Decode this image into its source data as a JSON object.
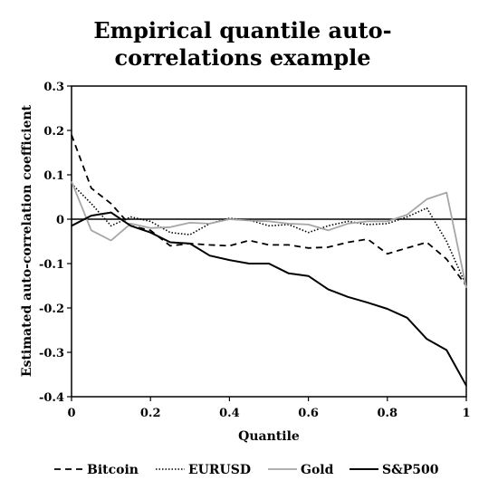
{
  "chart_data": {
    "type": "line",
    "title_lines": [
      "Empirical quantile auto-",
      "correlations example"
    ],
    "xlabel": "Quantile",
    "ylabel": "Estimated auto-correlation coefficient",
    "xlim": [
      0,
      1
    ],
    "ylim": [
      -0.4,
      0.3
    ],
    "x_ticks": [
      "0",
      "0.2",
      "0.4",
      "0.6",
      "0.8",
      "1"
    ],
    "y_ticks": [
      "0.3",
      "0.2",
      "0.1",
      "0",
      "-0.1",
      "-0.2",
      "-0.3",
      "-0.4"
    ],
    "grid": false,
    "legend_position": "bottom",
    "series": [
      {
        "name": "Bitcoin",
        "style": "dashed",
        "color": "#000000",
        "x": [
          0,
          0.05,
          0.1,
          0.15,
          0.2,
          0.25,
          0.3,
          0.35,
          0.4,
          0.45,
          0.5,
          0.55,
          0.6,
          0.65,
          0.7,
          0.75,
          0.8,
          0.85,
          0.9,
          0.95,
          1
        ],
        "y": [
          0.19,
          0.07,
          0.035,
          -0.015,
          -0.025,
          -0.06,
          -0.055,
          -0.058,
          -0.06,
          -0.048,
          -0.058,
          -0.058,
          -0.065,
          -0.063,
          -0.052,
          -0.045,
          -0.078,
          -0.065,
          -0.052,
          -0.09,
          -0.15
        ]
      },
      {
        "name": "EURUSD",
        "style": "dotted",
        "color": "#000000",
        "x": [
          0,
          0.05,
          0.1,
          0.15,
          0.2,
          0.25,
          0.3,
          0.35,
          0.4,
          0.45,
          0.5,
          0.55,
          0.6,
          0.65,
          0.7,
          0.75,
          0.8,
          0.85,
          0.9,
          0.95,
          1
        ],
        "y": [
          0.08,
          0.035,
          -0.015,
          0.005,
          -0.005,
          -0.03,
          -0.035,
          -0.01,
          0.002,
          -0.002,
          -0.015,
          -0.012,
          -0.03,
          -0.015,
          -0.005,
          -0.012,
          -0.01,
          0.005,
          0.025,
          -0.05,
          -0.15
        ]
      },
      {
        "name": "Gold",
        "style": "solid",
        "color": "#a6a6a6",
        "x": [
          0,
          0.05,
          0.1,
          0.15,
          0.2,
          0.25,
          0.3,
          0.35,
          0.4,
          0.45,
          0.5,
          0.55,
          0.6,
          0.65,
          0.7,
          0.75,
          0.8,
          0.85,
          0.9,
          0.95,
          1
        ],
        "y": [
          0.085,
          -0.025,
          -0.048,
          -0.01,
          -0.02,
          -0.018,
          -0.008,
          -0.01,
          0.0,
          -0.003,
          -0.005,
          -0.01,
          -0.012,
          -0.025,
          -0.01,
          -0.005,
          -0.005,
          0.01,
          0.045,
          0.06,
          -0.155
        ]
      },
      {
        "name": "S&P500",
        "style": "solid",
        "color": "#000000",
        "x": [
          0,
          0.05,
          0.1,
          0.15,
          0.2,
          0.25,
          0.3,
          0.35,
          0.4,
          0.45,
          0.5,
          0.55,
          0.6,
          0.65,
          0.7,
          0.75,
          0.8,
          0.85,
          0.9,
          0.95,
          1
        ],
        "y": [
          -0.015,
          0.008,
          0.015,
          -0.015,
          -0.03,
          -0.052,
          -0.055,
          -0.082,
          -0.092,
          -0.1,
          -0.1,
          -0.122,
          -0.128,
          -0.158,
          -0.175,
          -0.188,
          -0.202,
          -0.222,
          -0.27,
          -0.295,
          -0.375
        ]
      }
    ]
  }
}
